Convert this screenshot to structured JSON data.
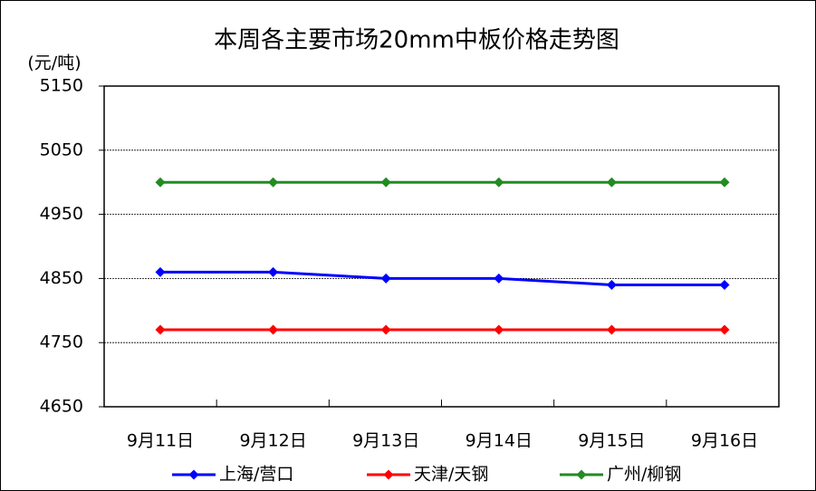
{
  "chart_data": {
    "type": "line",
    "title": "本周各主要市场20mm中板价格走势图",
    "y_label": "(元/吨)",
    "categories": [
      "9月11日",
      "9月12日",
      "9月13日",
      "9月14日",
      "9月15日",
      "9月16日"
    ],
    "series": [
      {
        "name": "上海/营口",
        "color": "#0000ff",
        "values": [
          4860,
          4860,
          4850,
          4850,
          4840,
          4840
        ]
      },
      {
        "name": "天津/天钢",
        "color": "#ff0000",
        "values": [
          4770,
          4770,
          4770,
          4770,
          4770,
          4770
        ]
      },
      {
        "name": "广州/柳钢",
        "color": "#228b22",
        "values": [
          5000,
          5000,
          5000,
          5000,
          5000,
          5000
        ]
      }
    ],
    "ylim": [
      4650,
      5150
    ],
    "yticks": [
      4650,
      4750,
      4850,
      4950,
      5050,
      5150
    ],
    "grid": true,
    "legend": "bottom"
  }
}
